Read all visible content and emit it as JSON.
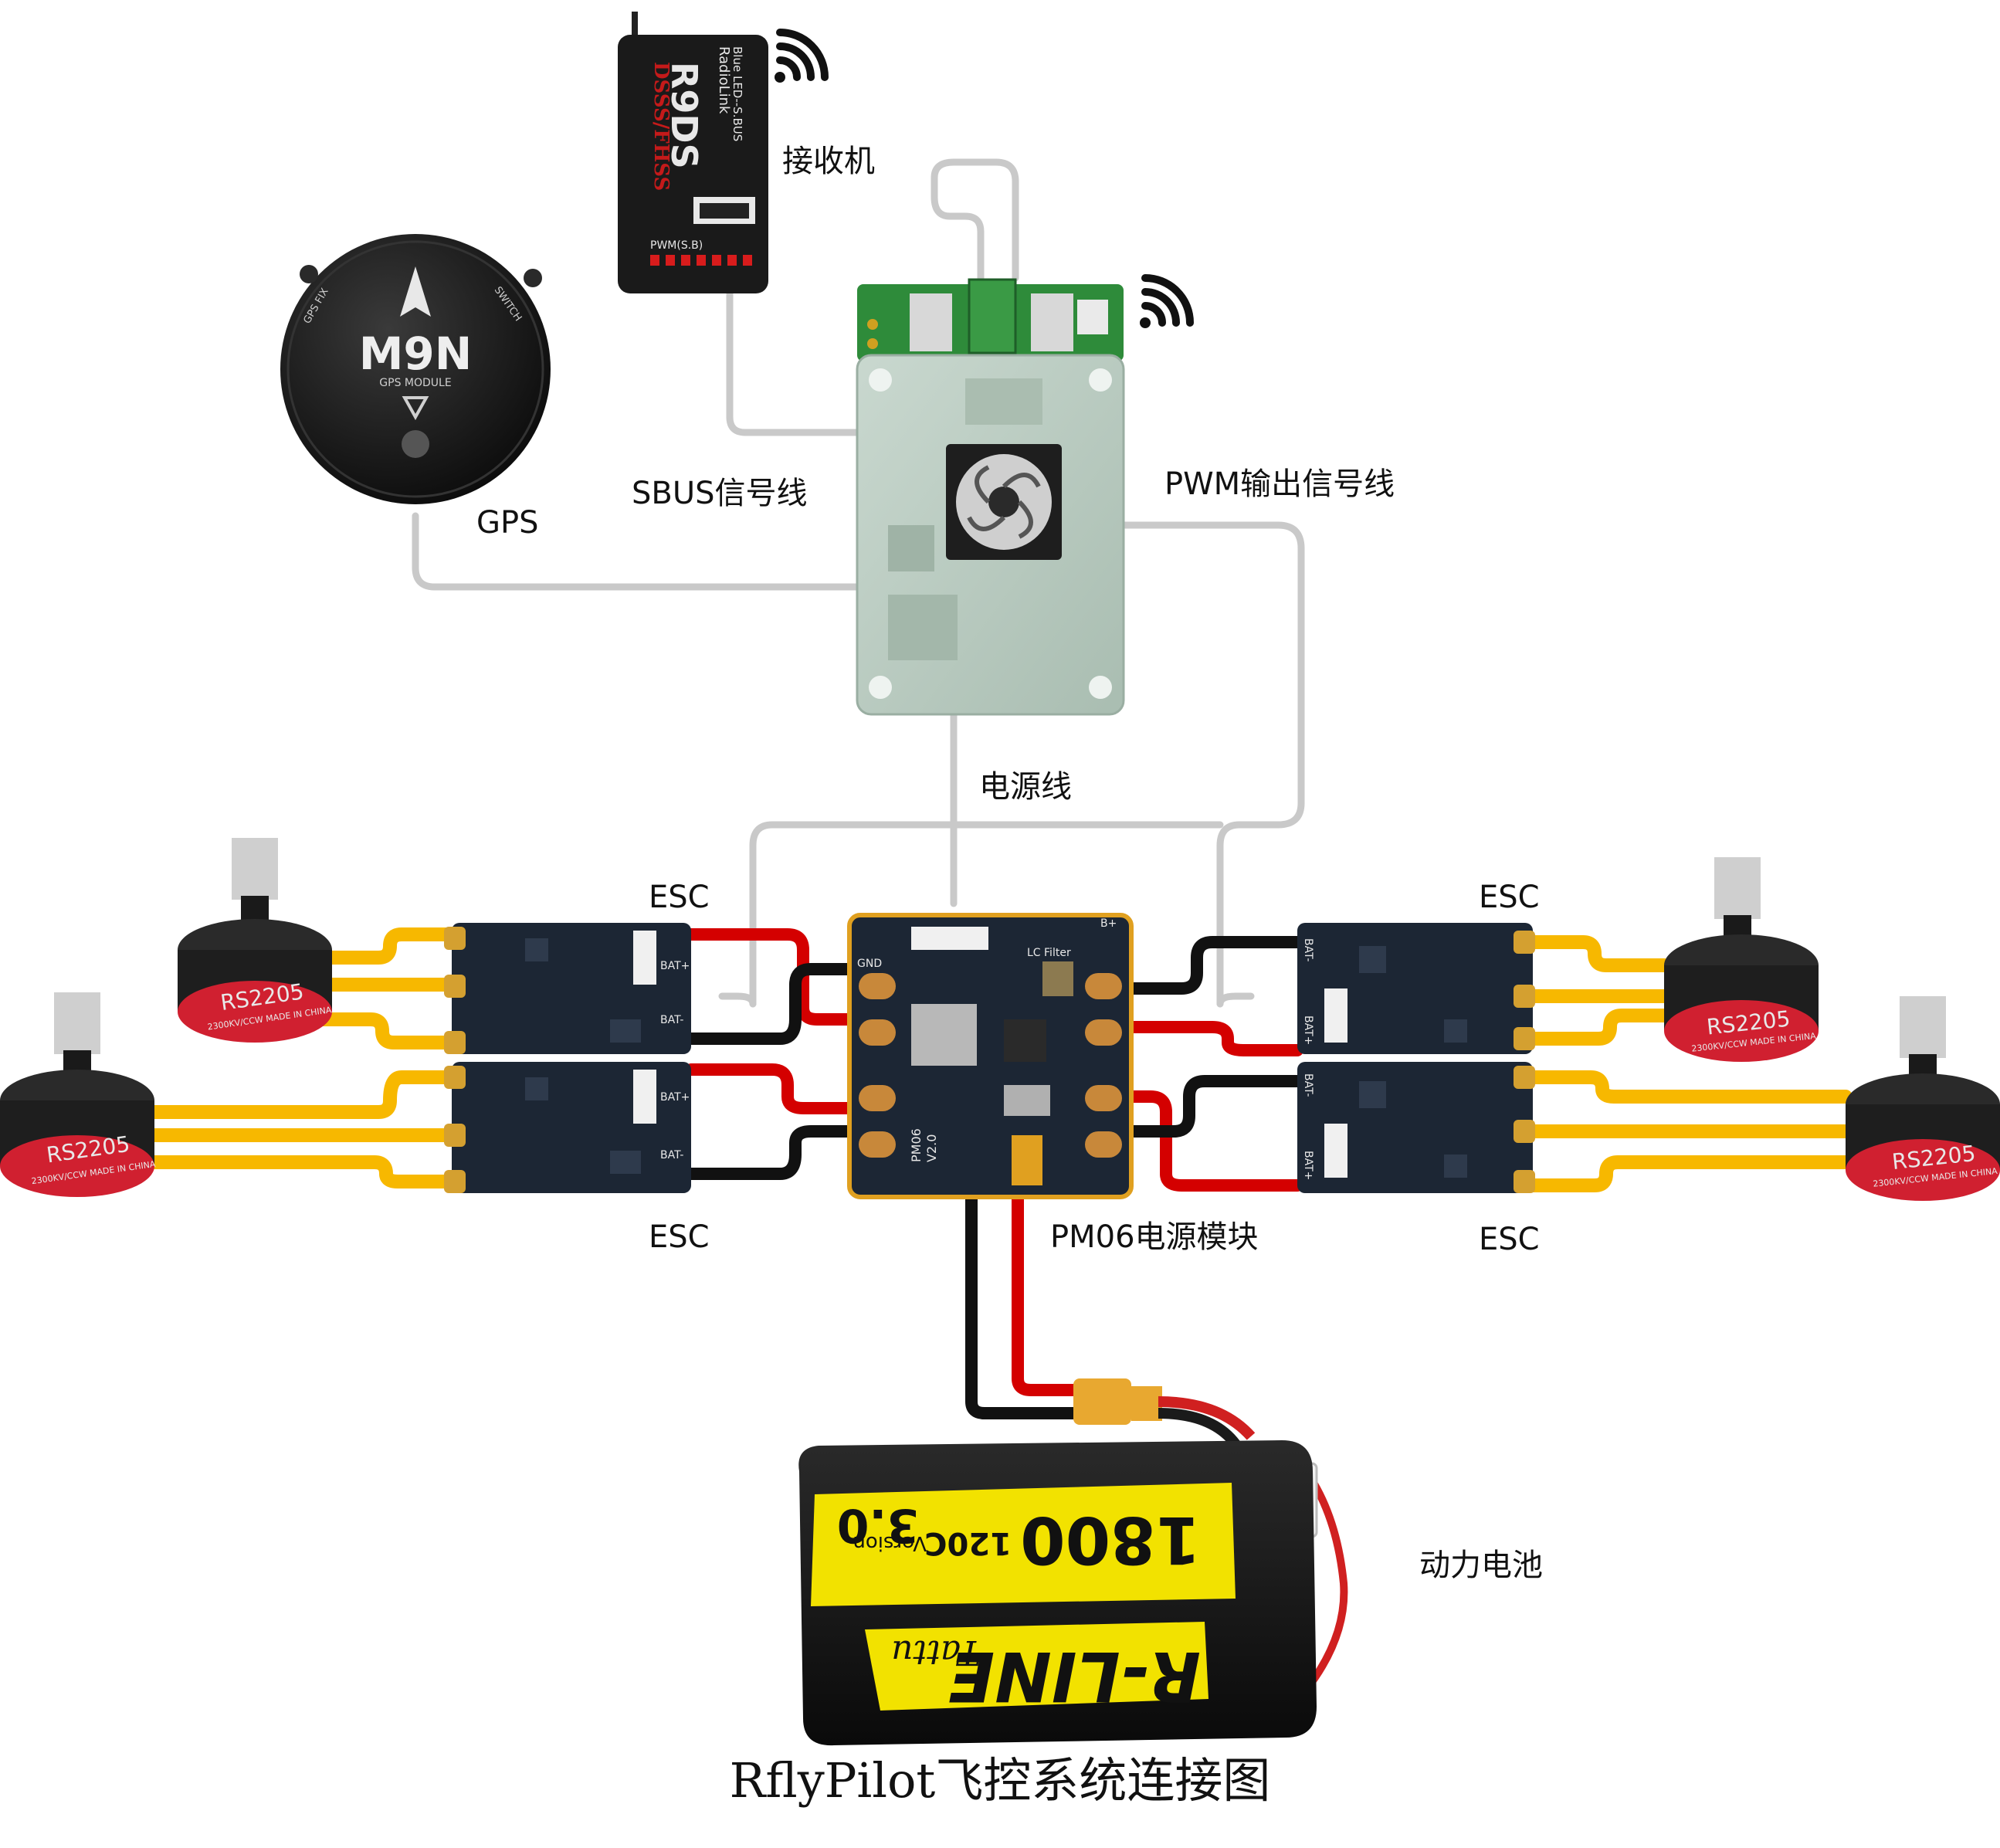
{
  "title": "RflyPilot飞控系统连接图",
  "labels": {
    "receiver": "接收机",
    "gps": "GPS",
    "sbus": "SBUS信号线",
    "pwm": "PWM输出信号线",
    "power_line": "电源线",
    "esc_top_left": "ESC",
    "esc_bottom_left": "ESC",
    "esc_top_right": "ESC",
    "esc_bottom_right": "ESC",
    "pm06": "PM06电源模块",
    "battery": "动力电池"
  },
  "device_text": {
    "receiver_brand": "RadioLink",
    "receiver_model": "R9DS",
    "receiver_sub": "Blue LED--S.BUS",
    "receiver_band": "DSSS/FHSS",
    "receiver_pwm": "PWM(S.B)",
    "gps_model": "M9N",
    "gps_sub": "GPS MODULE",
    "gps_fix": "GPS FIX",
    "gps_switch": "SWITCH",
    "motor_model": "RS2205",
    "motor_spec": "2300KV/CCW MADE IN CHINA",
    "battery_capacity": "1800",
    "battery_rate": "120C",
    "battery_version": "3.0",
    "battery_version_label": "Version",
    "battery_brand": "R-LINE",
    "battery_maker": "Tattu",
    "pm_name": "PM06",
    "pm_version": "V2.0",
    "pm_filter": "LC Filter",
    "pm_gnd": "GND",
    "pm_bplus": "B+",
    "esc_bat_plus": "BAT+",
    "esc_bat_minus": "BAT-"
  },
  "colors": {
    "signal_wire": "#c9c9c9",
    "power_positive": "#d40000",
    "power_negative": "#111111",
    "motor_wire": "#f7b800",
    "esc_board": "#1c2634",
    "pcb_green": "#2e8b3a",
    "flight_controller": "#b8cbbf",
    "battery_yellow": "#f2e200",
    "motor_red": "#d02030"
  }
}
